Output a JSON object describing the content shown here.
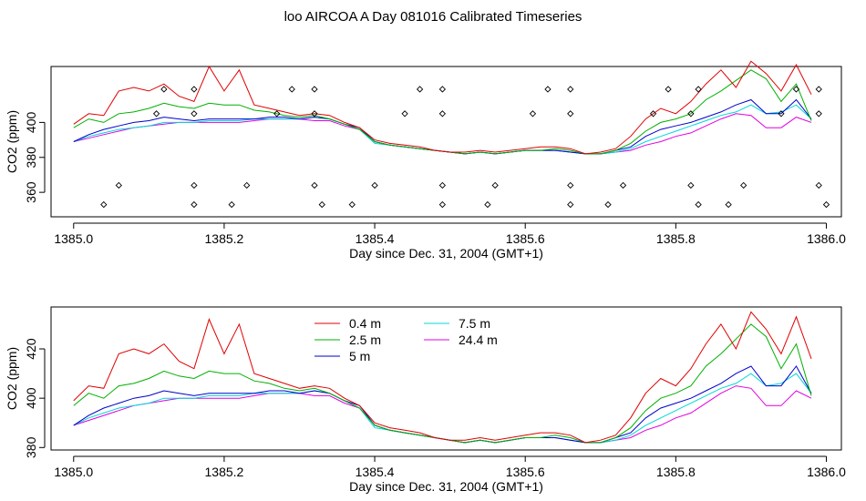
{
  "page": {
    "title": "loo AIRCOA A  Day 081016  Calibrated Timeseries"
  },
  "chart_data": [
    {
      "type": "line",
      "panel": "top",
      "xlabel": "Day since Dec. 31, 2004 (GMT+1)",
      "ylabel": "CO2 (ppm)",
      "xlim": [
        1384.97,
        1386.02
      ],
      "ylim": [
        346,
        432
      ],
      "xticks": [
        1385.0,
        1385.2,
        1385.4,
        1385.6,
        1385.8,
        1386.0
      ],
      "xtick_labels": [
        "1385.0",
        "1385.2",
        "1385.4",
        "1385.6",
        "1385.8",
        "1386.0"
      ],
      "yticks": [
        360,
        380,
        400
      ],
      "ytick_labels": [
        "360",
        "380",
        "400"
      ],
      "colors": [
        "#e00000",
        "#00b000",
        "#0000cc",
        "#00d8d8",
        "#e000e0"
      ],
      "marker_rows": [
        {
          "y": 419,
          "x": [
            1385.12,
            1385.16,
            1385.29,
            1385.32,
            1385.46,
            1385.49,
            1385.63,
            1385.66,
            1385.79,
            1385.83,
            1385.96,
            1385.99
          ]
        },
        {
          "y": 405,
          "x": [
            1385.11,
            1385.16,
            1385.27,
            1385.32,
            1385.44,
            1385.49,
            1385.61,
            1385.66,
            1385.77,
            1385.82,
            1385.94,
            1385.99
          ]
        },
        {
          "y": 364,
          "x": [
            1385.06,
            1385.16,
            1385.23,
            1385.32,
            1385.4,
            1385.49,
            1385.56,
            1385.66,
            1385.73,
            1385.82,
            1385.89,
            1385.99
          ]
        },
        {
          "y": 353,
          "x": [
            1385.04,
            1385.16,
            1385.21,
            1385.33,
            1385.37,
            1385.49,
            1385.55,
            1385.66,
            1385.71,
            1385.83,
            1385.87,
            1386.0
          ]
        }
      ]
    },
    {
      "type": "line",
      "panel": "bottom",
      "xlabel": "Day since Dec. 31, 2004 (GMT+1)",
      "ylabel": "CO2 (ppm)",
      "xlim": [
        1384.97,
        1386.02
      ],
      "ylim": [
        379,
        437
      ],
      "xticks": [
        1385.0,
        1385.2,
        1385.4,
        1385.6,
        1385.8,
        1386.0
      ],
      "xtick_labels": [
        "1385.0",
        "1385.2",
        "1385.4",
        "1385.6",
        "1385.8",
        "1386.0"
      ],
      "yticks": [
        380,
        400,
        420
      ],
      "ytick_labels": [
        "380",
        "400",
        "420"
      ],
      "legend": [
        "0.4 m",
        "2.5 m",
        "5 m",
        "7.5 m",
        "24.4 m"
      ],
      "legend_position": "top-center",
      "colors": [
        "#e00000",
        "#00b000",
        "#0000cc",
        "#00d8d8",
        "#e000e0"
      ]
    }
  ],
  "series": {
    "x": [
      1385.0,
      1385.02,
      1385.04,
      1385.06,
      1385.08,
      1385.1,
      1385.12,
      1385.14,
      1385.16,
      1385.18,
      1385.2,
      1385.22,
      1385.24,
      1385.26,
      1385.28,
      1385.3,
      1385.32,
      1385.34,
      1385.36,
      1385.38,
      1385.4,
      1385.42,
      1385.44,
      1385.46,
      1385.48,
      1385.5,
      1385.52,
      1385.54,
      1385.56,
      1385.58,
      1385.6,
      1385.62,
      1385.64,
      1385.66,
      1385.68,
      1385.7,
      1385.72,
      1385.74,
      1385.76,
      1385.78,
      1385.8,
      1385.82,
      1385.84,
      1385.86,
      1385.88,
      1385.9,
      1385.92,
      1385.94,
      1385.96,
      1385.98
    ],
    "values": [
      [
        399,
        405,
        404,
        418,
        420,
        418,
        422,
        415,
        412,
        432,
        418,
        430,
        410,
        408,
        406,
        404,
        405,
        404,
        400,
        397,
        390,
        388,
        387,
        386,
        384,
        383,
        383,
        384,
        383,
        384,
        385,
        386,
        386,
        385,
        382,
        383,
        385,
        392,
        402,
        408,
        405,
        412,
        422,
        430,
        420,
        435,
        428,
        418,
        433,
        416
      ],
      [
        397,
        402,
        400,
        405,
        406,
        408,
        411,
        409,
        408,
        411,
        410,
        410,
        407,
        406,
        404,
        403,
        404,
        402,
        399,
        396,
        389,
        387,
        386,
        385,
        384,
        383,
        382,
        383,
        382,
        383,
        384,
        384,
        385,
        384,
        382,
        382,
        384,
        388,
        395,
        400,
        402,
        405,
        413,
        418,
        424,
        430,
        425,
        412,
        422,
        401
      ],
      [
        389,
        393,
        396,
        398,
        400,
        401,
        403,
        402,
        401,
        402,
        402,
        402,
        402,
        403,
        403,
        402,
        403,
        402,
        399,
        397,
        389,
        387,
        386,
        385,
        384,
        383,
        382,
        383,
        382,
        383,
        384,
        384,
        384,
        383,
        382,
        382,
        384,
        386,
        392,
        396,
        398,
        400,
        403,
        406,
        410,
        413,
        405,
        405,
        413,
        402
      ],
      [
        389,
        392,
        394,
        396,
        397,
        398,
        400,
        400,
        400,
        401,
        401,
        401,
        402,
        402,
        402,
        402,
        403,
        402,
        399,
        396,
        388,
        387,
        386,
        385,
        384,
        383,
        382,
        383,
        382,
        383,
        384,
        384,
        384,
        383,
        382,
        382,
        383,
        385,
        389,
        392,
        395,
        398,
        401,
        404,
        406,
        410,
        405,
        406,
        410,
        402
      ],
      [
        389,
        391,
        393,
        395,
        397,
        398,
        399,
        400,
        400,
        400,
        400,
        400,
        401,
        402,
        402,
        402,
        401,
        401,
        398,
        396,
        389,
        387,
        386,
        385,
        384,
        383,
        382,
        383,
        382,
        383,
        384,
        384,
        384,
        383,
        382,
        382,
        383,
        384,
        387,
        389,
        392,
        394,
        398,
        402,
        405,
        404,
        397,
        397,
        403,
        400
      ]
    ]
  }
}
